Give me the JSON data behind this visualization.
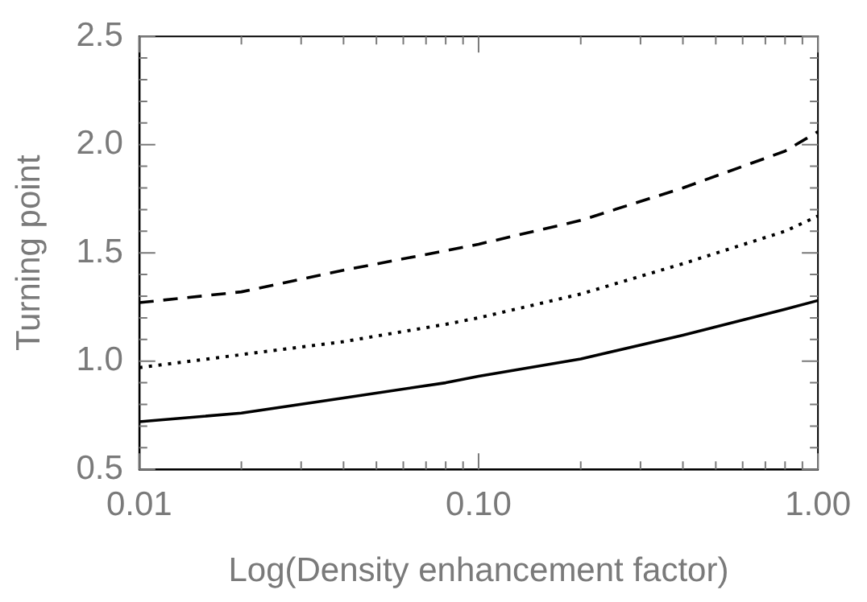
{
  "chart_data": {
    "type": "line",
    "xlabel": "Log(Density enhancement factor)",
    "ylabel": "Turning point",
    "log": "x",
    "marker": "none",
    "grid": false,
    "legend": false,
    "xlim": [
      0.01,
      1
    ],
    "ylim": [
      0.5,
      2.5
    ],
    "xticks": [
      {
        "value": 0.01,
        "label": "0.01"
      },
      {
        "value": 0.02,
        "label": null
      },
      {
        "value": 0.03,
        "label": null
      },
      {
        "value": 0.04,
        "label": null
      },
      {
        "value": 0.05,
        "label": null
      },
      {
        "value": 0.06,
        "label": null
      },
      {
        "value": 0.07,
        "label": null
      },
      {
        "value": 0.08,
        "label": null
      },
      {
        "value": 0.09,
        "label": null
      },
      {
        "value": 0.1,
        "label": "0.10"
      },
      {
        "value": 0.2,
        "label": null
      },
      {
        "value": 0.3,
        "label": null
      },
      {
        "value": 0.4,
        "label": null
      },
      {
        "value": 0.5,
        "label": null
      },
      {
        "value": 0.6,
        "label": null
      },
      {
        "value": 0.7,
        "label": null
      },
      {
        "value": 0.8,
        "label": null
      },
      {
        "value": 0.9,
        "label": null
      },
      {
        "value": 1,
        "label": "1.00"
      }
    ],
    "yticks": [
      {
        "value": 0.5,
        "label": "0.5"
      },
      {
        "value": 0.6,
        "label": null
      },
      {
        "value": 0.7,
        "label": null
      },
      {
        "value": 0.8,
        "label": null
      },
      {
        "value": 0.9,
        "label": null
      },
      {
        "value": 1,
        "label": "1.0"
      },
      {
        "value": 1.1,
        "label": null
      },
      {
        "value": 1.2,
        "label": null
      },
      {
        "value": 1.3,
        "label": null
      },
      {
        "value": 1.4,
        "label": null
      },
      {
        "value": 1.5,
        "label": "1.5"
      },
      {
        "value": 1.6,
        "label": null
      },
      {
        "value": 1.7,
        "label": null
      },
      {
        "value": 1.8,
        "label": null
      },
      {
        "value": 1.9,
        "label": null
      },
      {
        "value": 2,
        "label": "2.0"
      },
      {
        "value": 2.1,
        "label": null
      },
      {
        "value": 2.2,
        "label": null
      },
      {
        "value": 2.3,
        "label": null
      },
      {
        "value": 2.4,
        "label": null
      },
      {
        "value": 2.5,
        "label": "2.5"
      }
    ],
    "x": [
      0.01,
      0.02,
      0.04,
      0.08,
      0.1,
      0.2,
      0.4,
      0.8,
      1
    ],
    "series": [
      {
        "color": "#000000",
        "line_style": "solid",
        "values": [
          0.72,
          0.76,
          0.83,
          0.9,
          0.93,
          1.01,
          1.12,
          1.24,
          1.28
        ]
      },
      {
        "color": "#000000",
        "line_style": "dotted",
        "values": [
          0.97,
          1.03,
          1.09,
          1.17,
          1.2,
          1.31,
          1.45,
          1.6,
          1.67
        ]
      },
      {
        "color": "#000000",
        "line_style": "dashed",
        "values": [
          1.27,
          1.32,
          1.42,
          1.51,
          1.54,
          1.65,
          1.8,
          1.97,
          2.06
        ]
      }
    ]
  }
}
